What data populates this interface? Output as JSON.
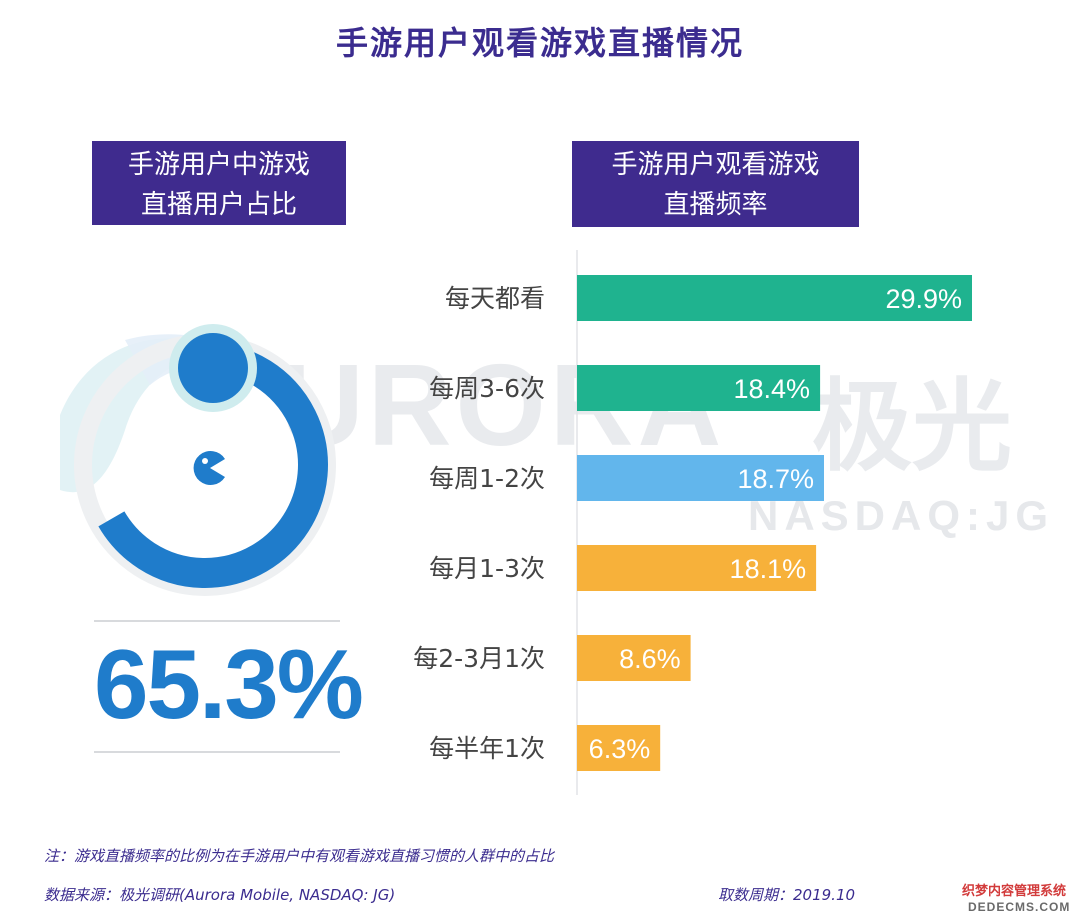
{
  "title": "手游用户观看游戏直播情况",
  "left_panel": {
    "header_line1": "手游用户中游戏",
    "header_line2": "直播用户占比",
    "value_label": "65.3%",
    "value": 65.3
  },
  "right_panel": {
    "header_line1": "手游用户观看游戏",
    "header_line2": "直播频率"
  },
  "watermark": {
    "brand_en": "URORA",
    "brand_cn": "极光",
    "ticker": "NASDAQ:JG"
  },
  "colors": {
    "title": "#3b2c8f",
    "header_bg": "#3f2b8e",
    "donut_blue": "#1f7ccb",
    "teal": "#1fb38f",
    "light_blue": "#62b6ec",
    "orange": "#f7b13a"
  },
  "chart_data": {
    "type": "bar",
    "orientation": "horizontal",
    "categories": [
      "每天都看",
      "每周3-6次",
      "每周1-2次",
      "每月1-3次",
      "每2-3月1次",
      "每半年1次"
    ],
    "values": [
      29.9,
      18.4,
      18.7,
      18.1,
      8.6,
      6.3
    ],
    "value_labels": [
      "29.9%",
      "18.4%",
      "18.7%",
      "18.1%",
      "8.6%",
      "6.3%"
    ],
    "bar_colors": [
      "#1fb38f",
      "#1fb38f",
      "#62b6ec",
      "#f7b13a",
      "#f7b13a",
      "#f7b13a"
    ],
    "xlim": [
      0,
      30
    ],
    "grid": false
  },
  "footer": {
    "note": "注：游戏直播频率的比例为在手游用户中有观看游戏直播习惯的人群中的占比",
    "source": "数据来源：极光调研(Aurora Mobile, NASDAQ: JG)",
    "period": "取数周期：2019.10",
    "corner_cn": "织梦内容管理系统",
    "corner_en": "DEDECMS.COM"
  }
}
